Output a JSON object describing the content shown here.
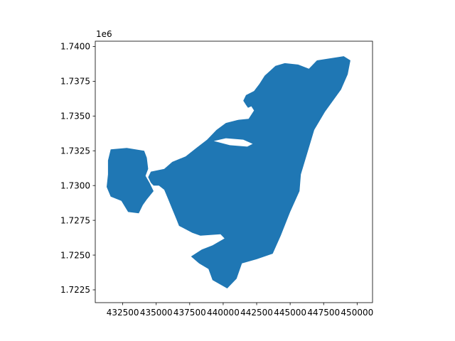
{
  "chart_data": {
    "type": "map",
    "title": "",
    "xlabel": "",
    "ylabel": "",
    "xlim": [
      430450,
      451150
    ],
    "ylim": [
      1721580,
      1740380
    ],
    "y_offset_text": "1e6",
    "xticks": [
      432500,
      435000,
      437500,
      440000,
      442500,
      445000,
      447500,
      450000
    ],
    "xtick_labels": [
      "432500",
      "435000",
      "437500",
      "440000",
      "442500",
      "445000",
      "447500",
      "450000"
    ],
    "yticks": [
      1722500,
      1725000,
      1727500,
      1730000,
      1732500,
      1735000,
      1737500,
      1740000
    ],
    "ytick_labels": [
      "1.7225",
      "1.7250",
      "1.7275",
      "1.7300",
      "1.7325",
      "1.7350",
      "1.7375",
      "1.7400"
    ],
    "fill_color": "#1f77b4",
    "grid": false,
    "legend": "none",
    "polygon": [
      [
        447000,
        1739000
      ],
      [
        449000,
        1739300
      ],
      [
        449500,
        1739000
      ],
      [
        449300,
        1738000
      ],
      [
        448800,
        1736900
      ],
      [
        447600,
        1735300
      ],
      [
        446800,
        1734000
      ],
      [
        446300,
        1732400
      ],
      [
        445800,
        1730800
      ],
      [
        445700,
        1729600
      ],
      [
        445000,
        1728100
      ],
      [
        444300,
        1726400
      ],
      [
        443700,
        1725100
      ],
      [
        442500,
        1724700
      ],
      [
        441400,
        1724400
      ],
      [
        441000,
        1723300
      ],
      [
        440300,
        1722600
      ],
      [
        439200,
        1723200
      ],
      [
        438900,
        1724000
      ],
      [
        438200,
        1724400
      ],
      [
        437600,
        1724900
      ],
      [
        438400,
        1725400
      ],
      [
        439200,
        1725700
      ],
      [
        440100,
        1726200
      ],
      [
        439800,
        1726500
      ],
      [
        438300,
        1726400
      ],
      [
        437700,
        1726600
      ],
      [
        436700,
        1727100
      ],
      [
        436500,
        1727600
      ],
      [
        436200,
        1728300
      ],
      [
        435900,
        1729000
      ],
      [
        435600,
        1729700
      ],
      [
        435200,
        1730000
      ],
      [
        434800,
        1730000
      ],
      [
        434600,
        1730200
      ],
      [
        434400,
        1730600
      ],
      [
        434600,
        1731000
      ],
      [
        435600,
        1731200
      ],
      [
        436200,
        1731700
      ],
      [
        437200,
        1732100
      ],
      [
        438000,
        1732700
      ],
      [
        438800,
        1733300
      ],
      [
        439500,
        1734000
      ],
      [
        440200,
        1734500
      ],
      [
        441000,
        1734700
      ],
      [
        441800,
        1734900
      ],
      [
        442000,
        1735400
      ],
      [
        441700,
        1735800
      ],
      [
        441500,
        1736100
      ],
      [
        441700,
        1736500
      ],
      [
        442300,
        1736800
      ],
      [
        442700,
        1737300
      ],
      [
        443100,
        1737900
      ],
      [
        443900,
        1738600
      ],
      [
        444600,
        1738800
      ],
      [
        445600,
        1738700
      ],
      [
        446400,
        1738400
      ],
      [
        447000,
        1739000
      ]
    ],
    "inlet": [
      [
        440100,
        1735100
      ],
      [
        441200,
        1735300
      ],
      [
        442100,
        1735700
      ],
      [
        442300,
        1735400
      ],
      [
        441900,
        1734800
      ],
      [
        440800,
        1734700
      ],
      [
        440100,
        1735100
      ]
    ],
    "west_lobe": [
      [
        431600,
        1732600
      ],
      [
        432800,
        1732700
      ],
      [
        434100,
        1732500
      ],
      [
        434300,
        1732000
      ],
      [
        434400,
        1731200
      ],
      [
        434200,
        1730700
      ],
      [
        434500,
        1730200
      ],
      [
        434800,
        1729600
      ],
      [
        434300,
        1729000
      ],
      [
        434000,
        1728600
      ],
      [
        433700,
        1728000
      ],
      [
        432900,
        1728100
      ],
      [
        432400,
        1728900
      ],
      [
        431600,
        1729200
      ],
      [
        431300,
        1729900
      ],
      [
        431400,
        1730800
      ],
      [
        431400,
        1731800
      ],
      [
        431600,
        1732600
      ]
    ],
    "north_notch": [
      [
        439300,
        1733200
      ],
      [
        440200,
        1733400
      ],
      [
        441500,
        1733300
      ],
      [
        442200,
        1733000
      ],
      [
        441800,
        1732800
      ],
      [
        440500,
        1732900
      ],
      [
        439300,
        1733200
      ]
    ]
  }
}
